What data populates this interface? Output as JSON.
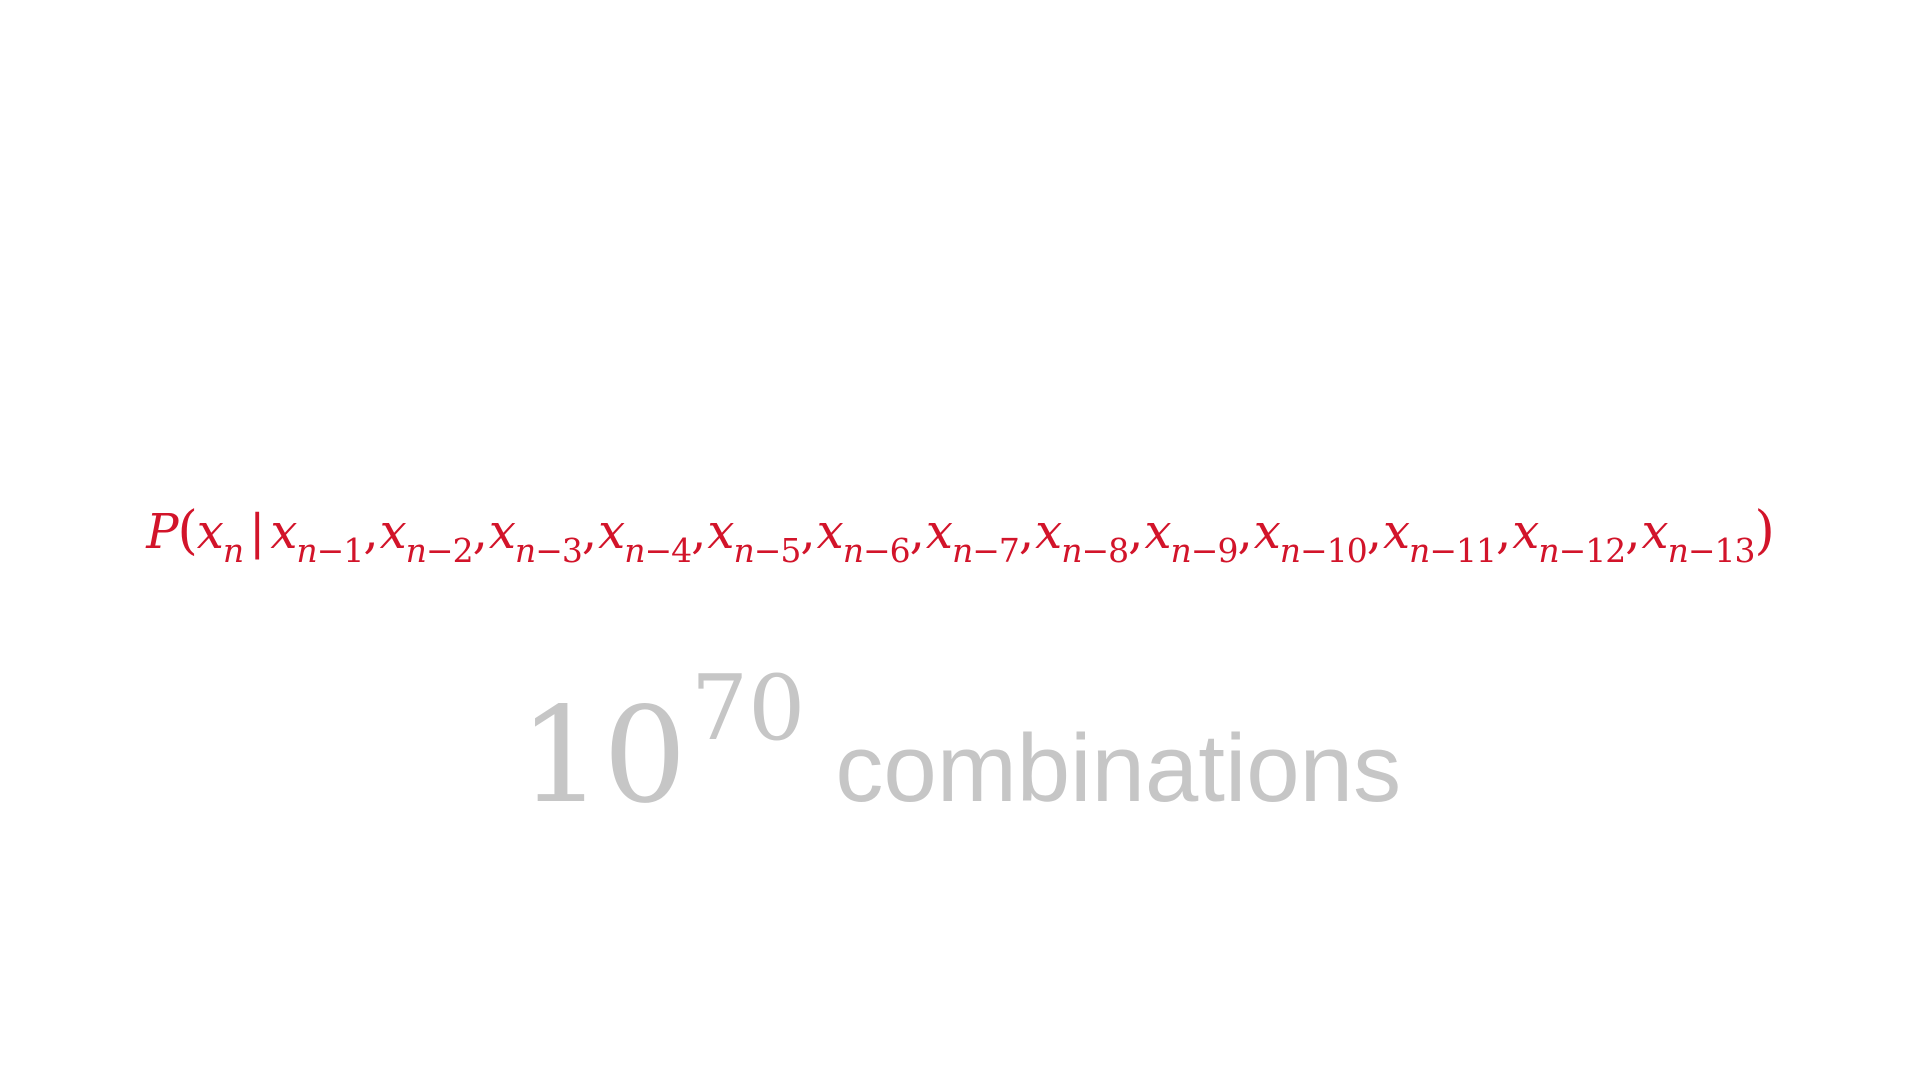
{
  "formula": {
    "prob": "P",
    "open": "(",
    "x": "x",
    "n": "n",
    "bar": "|",
    "minus": "−",
    "comma": ",",
    "close": ")",
    "given_offsets": [
      "1",
      "2",
      "3",
      "4",
      "5",
      "6",
      "7",
      "8",
      "9",
      "10",
      "11",
      "12",
      "13"
    ]
  },
  "combinations": {
    "base": "10",
    "exponent": "70",
    "label": "combinations"
  },
  "colors": {
    "formula": "#d2142a",
    "combinations": "#c6c6c6",
    "background": "#ffffff"
  }
}
